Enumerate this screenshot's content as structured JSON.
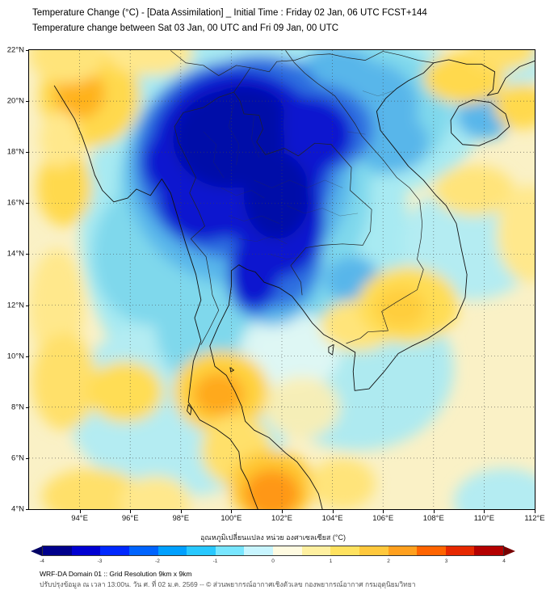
{
  "header": {
    "title_line1": "Temperature Change (°C) - [Data Assimilation] _ Initial Time : Friday 02 Jan, 06 UTC FCST+144",
    "title_line2": "Temperature change between Sat 03 Jan, 00 UTC and Fri 09 Jan, 00 UTC"
  },
  "map": {
    "base_color": "#faf1c6",
    "extent": {
      "lon_min": 92,
      "lon_max": 112,
      "lat_min": 4,
      "lat_max": 22
    },
    "lat_ticks": [
      "22°N",
      "20°N",
      "18°N",
      "16°N",
      "14°N",
      "12°N",
      "10°N",
      "8°N",
      "6°N",
      "4°N"
    ],
    "lon_ticks": [
      "94°E",
      "96°E",
      "98°E",
      "100°E",
      "102°E",
      "104°E",
      "106°E",
      "108°E",
      "110°E",
      "112°E"
    ],
    "field_blobs": [
      [
        100.5,
        15,
        6.5,
        7.5,
        "#a8eaf2"
      ],
      [
        104,
        19.5,
        6,
        3.5,
        "#a8eaf2"
      ],
      [
        98,
        8,
        4.5,
        3.5,
        "#b4ecf2"
      ],
      [
        105,
        9.5,
        3.8,
        3.2,
        "#aeeaf0"
      ],
      [
        109.5,
        14.5,
        2.7,
        2.3,
        "#b4ecf2"
      ],
      [
        100,
        21.5,
        4,
        1.8,
        "#a8eaf2"
      ],
      [
        111,
        21.7,
        1.7,
        1.2,
        "#b4ecf2"
      ],
      [
        110.8,
        4.3,
        2,
        1.3,
        "#b4ecf2"
      ],
      [
        100.5,
        16.5,
        5,
        5,
        "#7fd8ec"
      ],
      [
        105.5,
        19.6,
        3.2,
        2.6,
        "#7fd8ec"
      ],
      [
        103.8,
        12.8,
        2,
        1.6,
        "#7fd8ec"
      ],
      [
        99,
        11.2,
        2,
        2.4,
        "#7fd8ec"
      ],
      [
        96.9,
        14,
        2.4,
        2.8,
        "#7fd8ec"
      ],
      [
        102.3,
        10.2,
        2,
        1.6,
        "#e6f9f4",
        0.85
      ],
      [
        100.3,
        17.2,
        4.5,
        4.4,
        "#58b6ea"
      ],
      [
        101.6,
        13.6,
        2,
        2.4,
        "#58b6ea"
      ],
      [
        105.2,
        19.8,
        2.2,
        1.8,
        "#58b6ea"
      ],
      [
        104.2,
        21.2,
        1.4,
        1,
        "#58b6ea"
      ],
      [
        106.3,
        18.4,
        1.5,
        1.2,
        "#58b6ea"
      ],
      [
        110,
        19.4,
        1.1,
        0.9,
        "#58b6ea"
      ],
      [
        104.8,
        13,
        1.1,
        0.9,
        "#58b6ea"
      ],
      [
        103.5,
        20.3,
        2,
        1.4,
        "#58b6ea"
      ],
      [
        100.2,
        17.7,
        4,
        3.9,
        "#2f6fe0"
      ],
      [
        101.8,
        14.3,
        1.8,
        2.4,
        "#2f6fe0"
      ],
      [
        103.2,
        18.9,
        2.4,
        1.8,
        "#2f6fe0"
      ],
      [
        101.1,
        20.4,
        2.4,
        1.4,
        "#2f6fe0"
      ],
      [
        100.9,
        12.6,
        0.9,
        1,
        "#2f6fe0"
      ],
      [
        100.3,
        17.9,
        3.5,
        3.3,
        "#0a18cf"
      ],
      [
        101.9,
        15.4,
        1.8,
        2.3,
        "#0a18cf"
      ],
      [
        98.9,
        16.3,
        1.8,
        1.8,
        "#0a18cf"
      ],
      [
        97.9,
        17.6,
        1.4,
        1.4,
        "#0a18cf"
      ],
      [
        102.9,
        18.7,
        1.9,
        1.5,
        "#0a18cf"
      ],
      [
        100.9,
        13.3,
        1,
        1.4,
        "#0a18cf"
      ],
      [
        99.9,
        18.5,
        2.2,
        1.9,
        "#0009a8"
      ],
      [
        101.8,
        16.3,
        1.3,
        1.7,
        "#0009a8"
      ],
      [
        100.5,
        19.5,
        1.6,
        1.1,
        "#0009a8"
      ],
      [
        94.4,
        20.2,
        2,
        2,
        "#ffd94d"
      ],
      [
        94,
        20.3,
        1,
        1,
        "#ffb21e"
      ],
      [
        93.5,
        21.8,
        1.5,
        1.1,
        "#ffe47a"
      ],
      [
        93.4,
        16.6,
        1.1,
        1.5,
        "#ffd94d"
      ],
      [
        93.2,
        18.5,
        0.8,
        1.1,
        "#ffe88c"
      ],
      [
        93.1,
        12,
        1.1,
        2.2,
        "#ffe88c"
      ],
      [
        93.4,
        9,
        1.3,
        1.9,
        "#ffe06b"
      ],
      [
        95.8,
        8.6,
        1.5,
        1.2,
        "#ffdd55"
      ],
      [
        94.5,
        4.5,
        2,
        1.1,
        "#ffe06b"
      ],
      [
        97,
        4.3,
        1.4,
        1,
        "#ffe88c"
      ],
      [
        99.6,
        8.6,
        1.9,
        1.6,
        "#ffd23e"
      ],
      [
        99.5,
        8.5,
        1,
        0.85,
        "#ffa91e"
      ],
      [
        100.2,
        6.3,
        1.4,
        1.4,
        "#ffe06b"
      ],
      [
        102.8,
        8,
        1.5,
        1.2,
        "#fdeeb0",
        0.9
      ],
      [
        101.6,
        4.9,
        1.7,
        1.4,
        "#ffc832"
      ],
      [
        101.6,
        4.6,
        1.1,
        0.95,
        "#ff9714"
      ],
      [
        104.4,
        5,
        1.3,
        1,
        "#ffe47a"
      ],
      [
        105,
        11.2,
        1.5,
        1,
        "#ffe47a"
      ],
      [
        107,
        12,
        2,
        1.5,
        "#ffdd55"
      ],
      [
        106.7,
        11.9,
        1,
        0.8,
        "#ffce3c"
      ],
      [
        109.6,
        16.5,
        1.6,
        1,
        "#ffe47a"
      ],
      [
        111.8,
        14.8,
        1.3,
        1.9,
        "#ffe88c"
      ],
      [
        109.2,
        20.9,
        1.6,
        1,
        "#ffd94d"
      ],
      [
        111.5,
        19.8,
        1.1,
        0.9,
        "#ffd94d"
      ],
      [
        110.7,
        22,
        1.4,
        0.8,
        "#ffe06b"
      ],
      [
        96.8,
        21.9,
        1.7,
        0.9,
        "#ffe88c"
      ]
    ]
  },
  "colorbar": {
    "label": "อุณหภูมิเปลี่ยนแปลง หน่วย องศาเซลเซียส (°C)",
    "min": -4,
    "max": 4,
    "ticks": [
      "-4",
      "-3",
      "-2",
      "-1",
      "0",
      "1",
      "2",
      "3",
      "4"
    ],
    "segments": [
      "#00008c",
      "#0000d2",
      "#0028ff",
      "#0064ff",
      "#00a0ff",
      "#28c8ff",
      "#78e6ff",
      "#c8f5ff",
      "#fffbe1",
      "#fff0a0",
      "#ffe25f",
      "#ffc83c",
      "#ffa01e",
      "#ff6400",
      "#e62800",
      "#b40000"
    ],
    "left_arrow_color": "#000064",
    "right_arrow_color": "#780000"
  },
  "footer": {
    "line1": "WRF-DA Domain 01 :: Grid Resolution 9km x 9km",
    "line2": "ปรับปรุงข้อมูล ณ เวลา 13:00น. วัน ศ. ที่ 02 ม.ค. 2569 -- © ส่วนพยากรณ์อากาศเชิงตัวเลข กองพยากรณ์อากาศ กรมอุตุนิยมวิทยา"
  }
}
